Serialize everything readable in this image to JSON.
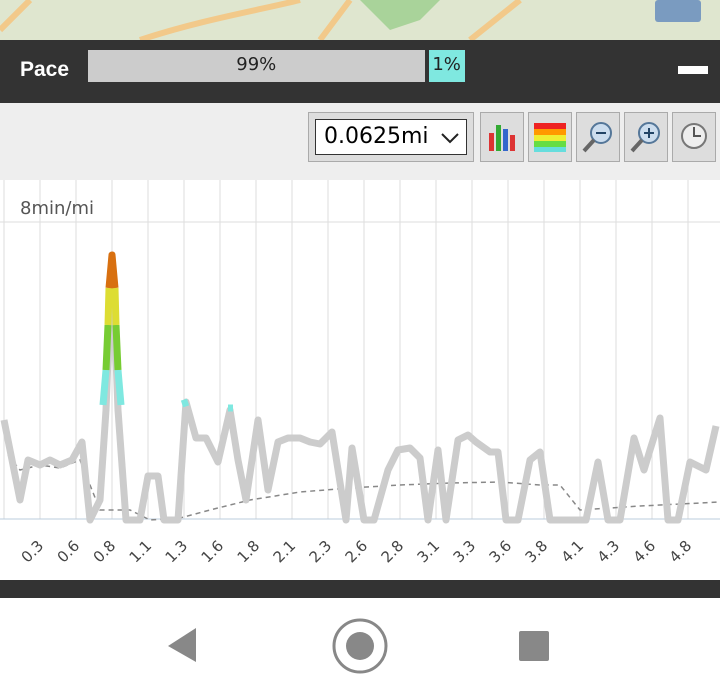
{
  "header": {
    "title": "Pace",
    "progress": [
      {
        "value": 99,
        "label": "99%"
      },
      {
        "value": 1,
        "label": "1%"
      }
    ]
  },
  "toolbar": {
    "interval": "0.0625mi"
  },
  "chart": {
    "y_label": "8min/mi",
    "x_labels": [
      "0.3",
      "0.6",
      "0.8",
      "1.1",
      "1.3",
      "1.6",
      "1.8",
      "2.1",
      "2.3",
      "2.6",
      "2.8",
      "3.1",
      "3.3",
      "3.6",
      "3.8",
      "4.1",
      "4.3",
      "4.6",
      "4.8"
    ]
  }
}
